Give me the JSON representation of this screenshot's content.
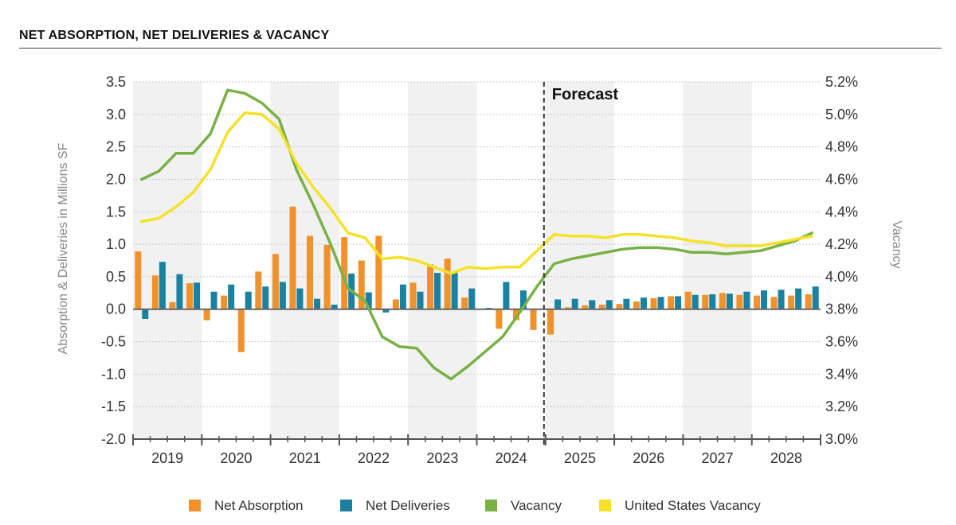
{
  "title": "NET ABSORPTION, NET DELIVERIES & VACANCY",
  "chart_data": {
    "type": "bar+line",
    "title": "NET ABSORPTION, NET DELIVERIES & VACANCY",
    "ylabel_left": "Absorption & Deliveries in Millions SF",
    "ylabel_right": "Vacancy",
    "ylim_left": [
      -2.0,
      3.5
    ],
    "ylim_right": [
      3.0,
      5.2
    ],
    "yticks_left": [
      "3.5",
      "3.0",
      "2.5",
      "2.0",
      "1.5",
      "1.0",
      "0.5",
      "0.0",
      "-0.5",
      "-1.0",
      "-1.5",
      "-2.0"
    ],
    "yticks_right": [
      "5.2%",
      "5.0%",
      "4.8%",
      "4.6%",
      "4.4%",
      "4.2%",
      "4.0%",
      "3.8%",
      "3.6%",
      "3.4%",
      "3.2%",
      "3.0%"
    ],
    "years": [
      "2019",
      "2020",
      "2021",
      "2022",
      "2023",
      "2024",
      "2025",
      "2026",
      "2027",
      "2028"
    ],
    "forecast_label": "Forecast",
    "forecast_start_quarter_index": 24,
    "quarters": [
      "2019 Q1",
      "2019 Q2",
      "2019 Q3",
      "2019 Q4",
      "2020 Q1",
      "2020 Q2",
      "2020 Q3",
      "2020 Q4",
      "2021 Q1",
      "2021 Q2",
      "2021 Q3",
      "2021 Q4",
      "2022 Q1",
      "2022 Q2",
      "2022 Q3",
      "2022 Q4",
      "2023 Q1",
      "2023 Q2",
      "2023 Q3",
      "2023 Q4",
      "2024 Q1",
      "2024 Q2",
      "2024 Q3",
      "2024 Q4",
      "2025 Q1",
      "2025 Q2",
      "2025 Q3",
      "2025 Q4",
      "2026 Q1",
      "2026 Q2",
      "2026 Q3",
      "2026 Q4",
      "2027 Q1",
      "2027 Q2",
      "2027 Q3",
      "2027 Q4",
      "2028 Q1",
      "2028 Q2",
      "2028 Q3",
      "2028 Q4"
    ],
    "series": [
      {
        "name": "Net Absorption",
        "type": "bar",
        "axis": "left",
        "color": "#f0922c",
        "values": [
          0.89,
          0.52,
          0.11,
          0.4,
          -0.17,
          0.21,
          -0.66,
          0.58,
          0.85,
          1.58,
          1.13,
          0.99,
          1.11,
          0.75,
          1.13,
          0.15,
          0.41,
          0.69,
          0.78,
          0.18,
          0.0,
          -0.3,
          -0.17,
          -0.32,
          -0.39,
          0.03,
          0.06,
          0.07,
          0.08,
          0.12,
          0.17,
          0.2,
          0.27,
          0.22,
          0.25,
          0.22,
          0.21,
          0.19,
          0.21,
          0.23
        ]
      },
      {
        "name": "Net Deliveries",
        "type": "bar",
        "axis": "left",
        "color": "#1a82a0",
        "values": [
          -0.15,
          0.73,
          0.54,
          0.41,
          0.27,
          0.38,
          0.27,
          0.35,
          0.42,
          0.32,
          0.16,
          0.07,
          0.55,
          0.26,
          -0.05,
          0.38,
          0.27,
          0.56,
          0.57,
          0.32,
          0.02,
          0.42,
          0.29,
          0.0,
          0.15,
          0.16,
          0.14,
          0.14,
          0.16,
          0.18,
          0.19,
          0.2,
          0.22,
          0.23,
          0.24,
          0.27,
          0.29,
          0.3,
          0.32,
          0.35
        ]
      },
      {
        "name": "Vacancy",
        "type": "line",
        "axis": "right",
        "color": "#78b144",
        "values": [
          4.6,
          4.65,
          4.76,
          4.76,
          4.88,
          5.15,
          5.13,
          5.07,
          4.97,
          4.66,
          4.44,
          4.2,
          3.93,
          3.85,
          3.63,
          3.57,
          3.56,
          3.44,
          3.37,
          3.45,
          3.54,
          3.63,
          3.78,
          3.94,
          4.08,
          4.11,
          4.13,
          4.15,
          4.17,
          4.18,
          4.18,
          4.17,
          4.15,
          4.15,
          4.14,
          4.15,
          4.16,
          4.19,
          4.22,
          4.27
        ]
      },
      {
        "name": "United States Vacancy",
        "type": "line",
        "axis": "right",
        "color": "#f5e228",
        "values": [
          4.34,
          4.36,
          4.43,
          4.52,
          4.66,
          4.89,
          5.01,
          5.0,
          4.91,
          4.7,
          4.55,
          4.42,
          4.27,
          4.24,
          4.11,
          4.12,
          4.1,
          4.06,
          4.02,
          4.06,
          4.05,
          4.06,
          4.06,
          4.16,
          4.26,
          4.25,
          4.25,
          4.24,
          4.26,
          4.26,
          4.25,
          4.24,
          4.22,
          4.21,
          4.19,
          4.19,
          4.19,
          4.21,
          4.23,
          4.25
        ]
      }
    ],
    "legend": [
      "Net Absorption",
      "Net Deliveries",
      "Vacancy",
      "United States Vacancy"
    ],
    "legend_position": "bottom",
    "grid": true
  }
}
